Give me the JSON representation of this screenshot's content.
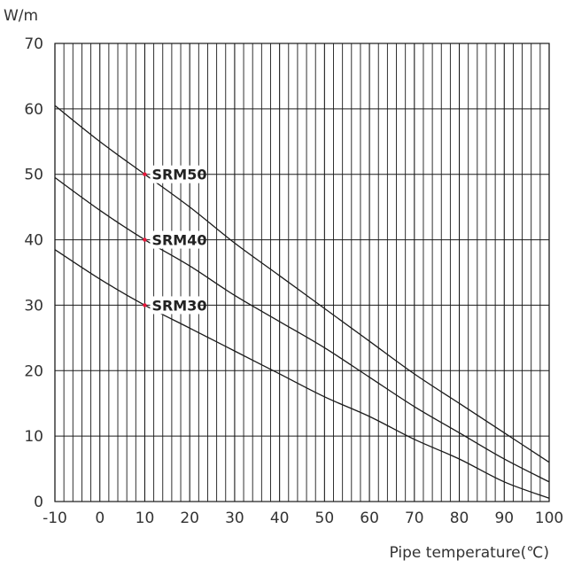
{
  "chart_data": {
    "type": "line",
    "title": "",
    "xlabel": "Pipe temperature(℃)",
    "ylabel": "W/m",
    "xlim": [
      -10,
      100
    ],
    "ylim": [
      0,
      70
    ],
    "x_ticks": [
      -10,
      0,
      10,
      20,
      30,
      40,
      50,
      60,
      70,
      80,
      90,
      100
    ],
    "y_ticks": [
      0,
      10,
      20,
      30,
      40,
      50,
      60,
      70
    ],
    "grid": true,
    "series": [
      {
        "name": "SRM50",
        "marker": {
          "x": 10,
          "y": 50
        },
        "points": [
          [
            -10,
            60.5
          ],
          [
            0,
            55
          ],
          [
            10,
            50
          ],
          [
            20,
            45
          ],
          [
            30,
            39.5
          ],
          [
            40,
            34.5
          ],
          [
            50,
            29.5
          ],
          [
            60,
            24.5
          ],
          [
            70,
            19.5
          ],
          [
            80,
            15
          ],
          [
            90,
            10.5
          ],
          [
            100,
            6
          ]
        ]
      },
      {
        "name": "SRM40",
        "marker": {
          "x": 10,
          "y": 40
        },
        "points": [
          [
            -10,
            49.5
          ],
          [
            0,
            44.5
          ],
          [
            10,
            40
          ],
          [
            20,
            36
          ],
          [
            30,
            31.5
          ],
          [
            40,
            27.5
          ],
          [
            50,
            23.5
          ],
          [
            60,
            19
          ],
          [
            70,
            14.5
          ],
          [
            80,
            10.5
          ],
          [
            90,
            6.5
          ],
          [
            100,
            3
          ]
        ]
      },
      {
        "name": "SRM30",
        "marker": {
          "x": 10,
          "y": 30
        },
        "points": [
          [
            -10,
            38.5
          ],
          [
            0,
            34
          ],
          [
            10,
            30
          ],
          [
            20,
            26.5
          ],
          [
            30,
            23
          ],
          [
            40,
            19.5
          ],
          [
            50,
            16
          ],
          [
            60,
            13
          ],
          [
            70,
            9.5
          ],
          [
            80,
            6.5
          ],
          [
            90,
            3
          ],
          [
            100,
            0.5
          ]
        ]
      }
    ]
  },
  "colors": {
    "grid": "#1a1a1a",
    "line": "#1a1a1a",
    "marker": "#e8173a",
    "text": "#333333"
  }
}
